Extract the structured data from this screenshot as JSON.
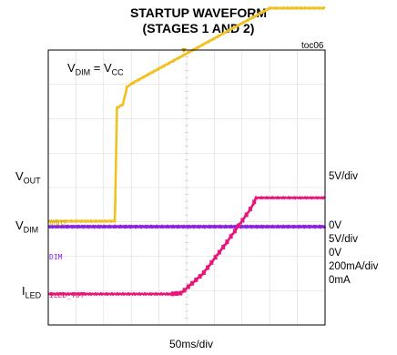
{
  "figure": {
    "title_line1": "STARTUP WAVEFORM",
    "title_line2": "(STAGES 1 AND 2)",
    "toc": "toc06",
    "condition_main": "V",
    "condition_sub1": "DIM",
    "condition_mid": " = V",
    "condition_sub2": "CC",
    "xlabel": "50ms/div"
  },
  "left_labels": {
    "vout_main": "V",
    "vout_sub": "OUT",
    "vdim_main": "V",
    "vdim_sub": "DIM",
    "iled_main": "I",
    "iled_sub": "LED"
  },
  "trace_tags": {
    "vout": "VOUT",
    "dim": "DIM",
    "iled": "ILED_TOT"
  },
  "scales": {
    "vout_div": "5V/div",
    "vdim_zero": "0V",
    "vdim_div": "5V/div",
    "vdim_zero2": "0V",
    "iled_div": "200mA/div",
    "iled_zero": "0mA"
  },
  "colors": {
    "vout": "#f0c11f",
    "dim": "#8c1fe8",
    "iled": "#e8157b",
    "grid": "#d8d8d8",
    "frame": "#000000"
  },
  "chart_data": {
    "type": "line",
    "x_unit": "ms",
    "time_per_div_ms": 50,
    "divisions_x": 10,
    "xlim": [
      0,
      500
    ],
    "grid": true,
    "series": [
      {
        "name": "VOUT",
        "unit": "V",
        "volts_per_div": 5,
        "x": [
          0,
          120,
          121,
          124,
          135,
          142,
          150,
          400,
          420,
          500
        ],
        "y": [
          0,
          0,
          3,
          16.5,
          17,
          19.5,
          20,
          31,
          31,
          31
        ]
      },
      {
        "name": "DIM",
        "unit": "V",
        "volts_per_div": 5,
        "x": [
          0,
          500
        ],
        "y": [
          0,
          0
        ]
      },
      {
        "name": "ILED_TOT",
        "unit": "mA",
        "amps_per_div_ma": 200,
        "x": [
          0,
          220,
          240,
          280,
          320,
          340,
          360,
          370,
          375,
          500
        ],
        "y": [
          0,
          0,
          5,
          120,
          290,
          380,
          470,
          520,
          560,
          560
        ]
      }
    ]
  }
}
